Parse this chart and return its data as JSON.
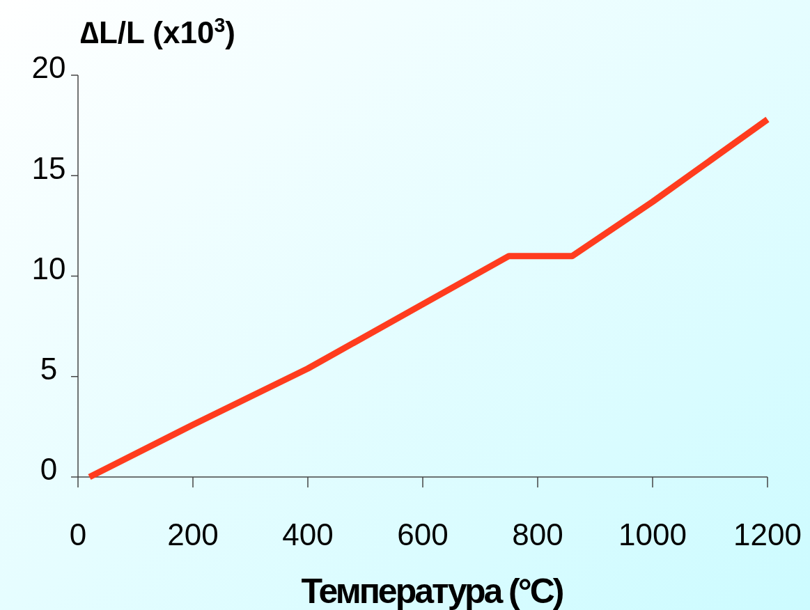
{
  "chart_data": {
    "type": "line",
    "ylabel": "∆L/L (x10$^{3}$)",
    "xlabel": "Температура (°C)",
    "x": [
      20,
      200,
      400,
      600,
      750,
      860,
      1000,
      1200
    ],
    "series": [
      {
        "color": "#ff3c1e",
        "values": [
          0,
          2.6,
          5.4,
          8.6,
          11,
          11,
          13.7,
          17.8
        ]
      }
    ],
    "xlim": [
      0,
      1200
    ],
    "xticks": [
      0,
      200,
      400,
      600,
      800,
      1000,
      1200
    ],
    "ylim": [
      0,
      20
    ],
    "yticks": [
      0,
      5,
      10,
      15,
      20
    ],
    "grid": false,
    "marker": "none",
    "line_style": "solid"
  }
}
